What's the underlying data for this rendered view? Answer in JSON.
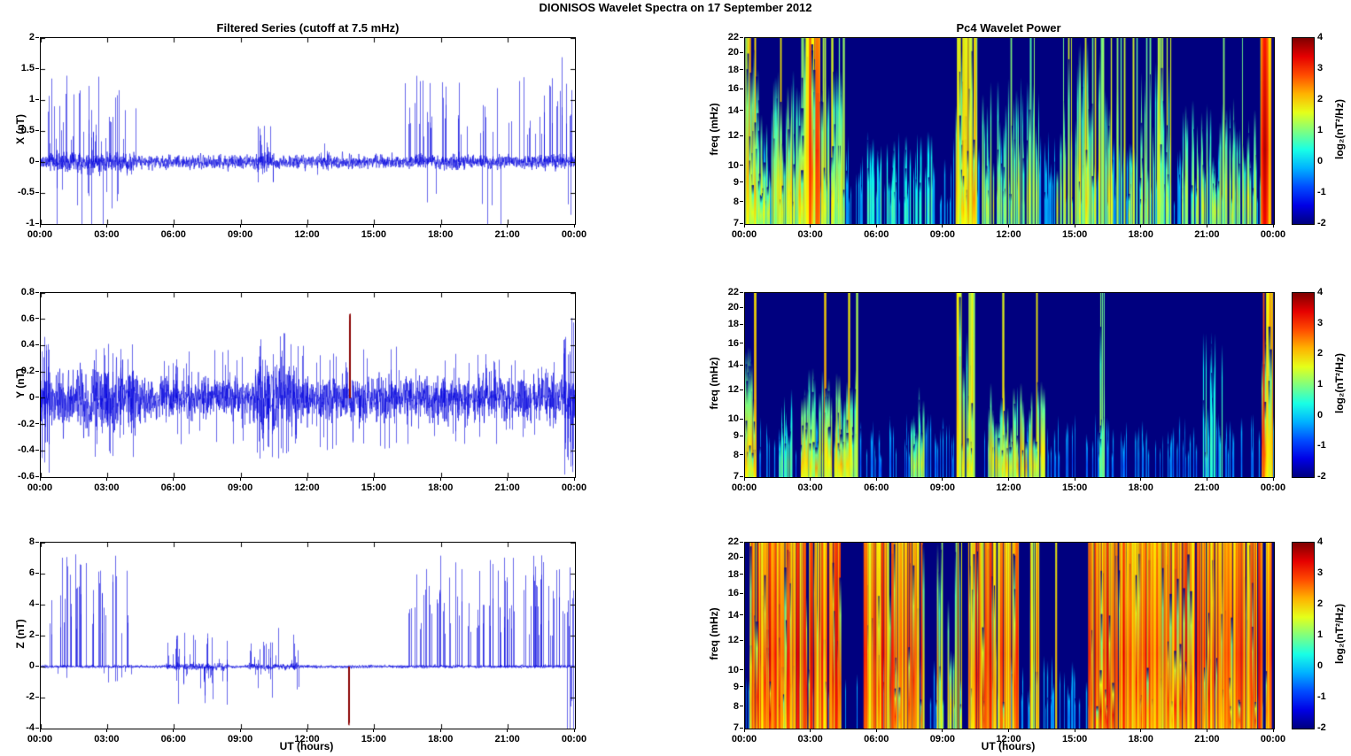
{
  "page_title": "DIONISOS Wavelet Spectra on 17 September 2012",
  "left_column_title": "Filtered Series (cutoff at 7.5 mHz)",
  "right_column_title": "Pc4 Wavelet Power",
  "xlabel": "UT (hours)",
  "x_ticks": [
    "00:00",
    "03:00",
    "06:00",
    "09:00",
    "12:00",
    "15:00",
    "18:00",
    "21:00",
    "00:00"
  ],
  "line_color": "#0000dd",
  "accent_spike_color": "#8b0000",
  "colorbar": {
    "label": "log₂(nT²/Hz)",
    "min": -2,
    "max": 4,
    "ticks": [
      4,
      3,
      2,
      1,
      0,
      -1,
      -2
    ]
  },
  "chart_data": [
    {
      "type": "line",
      "name": "x-series",
      "title": "Filtered Series (cutoff at 7.5 mHz)",
      "ylabel": "X (nT)",
      "ylim": [
        -1,
        2
      ],
      "yticks": [
        2,
        1.5,
        1,
        0.5,
        0,
        -0.5,
        -1
      ],
      "xlim_hours": [
        0,
        24
      ],
      "noise_sigma": 0.055,
      "envelope_regions": [
        {
          "t": [
            0.3,
            4.3
          ],
          "factor": 1.4
        },
        {
          "t": [
            9.7,
            10.5
          ],
          "factor": 1.5
        }
      ],
      "spike_regions": [
        {
          "t": [
            0.3,
            4.3
          ],
          "amp": [
            0.3,
            1.42
          ],
          "dir": "mostly-up",
          "density": 0.5
        },
        {
          "t": [
            2.7,
            4.2
          ],
          "amp": [
            0.2,
            0.75
          ],
          "dir": "down",
          "density": 0.12
        },
        {
          "t": [
            9.7,
            10.5
          ],
          "amp": [
            0.15,
            0.6
          ],
          "dir": "both",
          "density": 0.7
        },
        {
          "t": [
            12.4,
            13.3
          ],
          "amp": [
            0.1,
            0.35
          ],
          "dir": "both",
          "density": 0.35
        },
        {
          "t": [
            16.3,
            23.4
          ],
          "amp": [
            0.4,
            1.4
          ],
          "dir": "mostly-up",
          "density": 0.33
        },
        {
          "t": [
            23.4,
            23.92
          ],
          "amp": [
            0.6,
            1.8
          ],
          "dir": "mostly-up",
          "density": 0.6
        },
        {
          "t": [
            23.5,
            23.9
          ],
          "amp": [
            0.5,
            1.05
          ],
          "dir": "down",
          "density": 0.2
        }
      ]
    },
    {
      "type": "line",
      "name": "y-series",
      "ylabel": "Y (nT)",
      "ylim": [
        -0.6,
        0.8
      ],
      "yticks": [
        0.8,
        0.6,
        0.4,
        0.2,
        0,
        -0.2,
        -0.4,
        -0.6
      ],
      "xlim_hours": [
        0,
        24
      ],
      "noise_sigma": 0.075,
      "envelope_regions": [
        {
          "t": [
            0,
            4.5
          ],
          "factor": 1.5
        },
        {
          "t": [
            9.5,
            11.5
          ],
          "factor": 1.6
        },
        {
          "t": [
            22.8,
            24
          ],
          "factor": 1.4
        }
      ],
      "spike_regions": [
        {
          "t": [
            0.05,
            0.45
          ],
          "amp": [
            0.3,
            0.58
          ],
          "dir": "both",
          "density": 1.5
        },
        {
          "t": [
            2.4,
            4.3
          ],
          "amp": [
            0.15,
            0.45
          ],
          "dir": "both",
          "density": 0.8
        },
        {
          "t": [
            5.5,
            9.2
          ],
          "amp": [
            0.1,
            0.4
          ],
          "dir": "both",
          "density": 0.45
        },
        {
          "t": [
            9.5,
            11.5
          ],
          "amp": [
            0.15,
            0.5
          ],
          "dir": "both",
          "density": 0.9
        },
        {
          "t": [
            11.5,
            16.2
          ],
          "amp": [
            0.1,
            0.42
          ],
          "dir": "both",
          "density": 0.45
        },
        {
          "t": [
            13.88,
            13.93
          ],
          "amp": [
            0.55,
            0.65
          ],
          "dir": "up",
          "density": 25,
          "color": "#8b0000"
        },
        {
          "t": [
            16.2,
            23.4
          ],
          "amp": [
            0.1,
            0.35
          ],
          "dir": "both",
          "density": 0.45
        },
        {
          "t": [
            23.5,
            23.95
          ],
          "amp": [
            0.3,
            0.62
          ],
          "dir": "both",
          "density": 2
        }
      ]
    },
    {
      "type": "line",
      "name": "z-series",
      "ylabel": "Z (nT)",
      "ylim": [
        -4,
        8
      ],
      "yticks": [
        8,
        6,
        4,
        2,
        0,
        -2,
        -4
      ],
      "xlabel": "UT (hours)",
      "xlim_hours": [
        0,
        24
      ],
      "noise_sigma": 0.05,
      "envelope_regions": [
        {
          "t": [
            5.6,
            8.4
          ],
          "factor": 2.2
        },
        {
          "t": [
            9.3,
            11.6
          ],
          "factor": 2.0
        }
      ],
      "spike_regions": [
        {
          "t": [
            0.35,
            4.1
          ],
          "amp": [
            2,
            7.3
          ],
          "dir": "up",
          "density": 0.45
        },
        {
          "t": [
            0.35,
            4.1
          ],
          "amp": [
            0.3,
            1.1
          ],
          "dir": "down",
          "density": 0.1
        },
        {
          "t": [
            5.6,
            8.4
          ],
          "amp": [
            0.4,
            2.5
          ],
          "dir": "both",
          "density": 0.6
        },
        {
          "t": [
            9.3,
            11.6
          ],
          "amp": [
            0.4,
            2.6
          ],
          "dir": "both",
          "density": 0.5
        },
        {
          "t": [
            13.82,
            13.86
          ],
          "amp": [
            3.5,
            3.8
          ],
          "dir": "down",
          "density": 30,
          "color": "#8b0000"
        },
        {
          "t": [
            16.4,
            23.6
          ],
          "amp": [
            2,
            7.3
          ],
          "dir": "up",
          "density": 0.5
        },
        {
          "t": [
            23.6,
            23.95
          ],
          "amp": [
            2,
            6.5
          ],
          "dir": "both",
          "density": 1.2
        }
      ]
    },
    {
      "type": "heatmap",
      "name": "pc4-wavelet-power-x",
      "title": "Pc4 Wavelet Power",
      "ylabel": "freq (mHz)",
      "flim": [
        7,
        22
      ],
      "yscale": "log",
      "yticks": [
        22,
        20,
        18,
        16,
        14,
        12,
        10,
        9,
        8,
        7
      ],
      "clim": [
        -2,
        4
      ],
      "colormap": "jet",
      "streak_clusters": [
        {
          "t": [
            0,
            24
          ],
          "vmax": -0.4,
          "density": 0.5,
          "max_h": 0.5,
          "width": 1
        },
        {
          "t": [
            0.05,
            0.6
          ],
          "vmax": 2.6,
          "density": 2.5,
          "max_h": 0.95,
          "full_prob": 0.25,
          "width": 2.2
        },
        {
          "t": [
            0.6,
            4.5
          ],
          "vmax": 2.1,
          "density": 1.1,
          "max_h": 0.85,
          "full_prob": 0.12,
          "width": 1.8
        },
        {
          "t": [
            2.5,
            3.4
          ],
          "vmax": 3.1,
          "density": 1.8,
          "max_h": 1,
          "full_prob": 0.35,
          "width": 2.6
        },
        {
          "t": [
            5.4,
            8.6
          ],
          "vmax": 0.9,
          "density": 0.45,
          "max_h": 0.5,
          "width": 1.4
        },
        {
          "t": [
            9.6,
            10.5
          ],
          "vmax": 2.7,
          "density": 1.8,
          "max_h": 1,
          "full_prob": 0.45,
          "width": 2
        },
        {
          "t": [
            10.8,
            13.5
          ],
          "vmax": 1.7,
          "density": 0.7,
          "max_h": 0.8,
          "full_prob": 0.08,
          "width": 1.5
        },
        {
          "t": [
            14.1,
            16.7
          ],
          "vmax": 2.1,
          "density": 0.7,
          "max_h": 1,
          "full_prob": 0.25,
          "width": 1.6
        },
        {
          "t": [
            16.9,
            19.3
          ],
          "vmax": 1.9,
          "density": 0.7,
          "max_h": 0.9,
          "full_prob": 0.18,
          "width": 1.5
        },
        {
          "t": [
            19.8,
            23.3
          ],
          "vmax": 1.7,
          "density": 0.7,
          "max_h": 0.7,
          "full_prob": 0.08,
          "width": 1.5
        },
        {
          "t": [
            23.45,
            23.85
          ],
          "vmax": 3.8,
          "density": 3,
          "max_h": 1,
          "full_prob": 0.7,
          "width": 2.6
        }
      ]
    },
    {
      "type": "heatmap",
      "name": "pc4-wavelet-power-y",
      "ylabel": "freq (mHz)",
      "flim": [
        7,
        22
      ],
      "yscale": "log",
      "yticks": [
        22,
        20,
        18,
        16,
        14,
        12,
        10,
        9,
        8,
        7
      ],
      "clim": [
        -2,
        4
      ],
      "colormap": "jet",
      "streak_clusters": [
        {
          "t": [
            0,
            24
          ],
          "vmax": -0.8,
          "density": 0.35,
          "max_h": 0.35,
          "width": 1
        },
        {
          "t": [
            0.05,
            0.5
          ],
          "vmax": 2.6,
          "density": 2.5,
          "max_h": 0.75,
          "full_prob": 0.1,
          "width": 2.4
        },
        {
          "t": [
            1.4,
            2.2
          ],
          "vmax": 1.1,
          "density": 0.7,
          "max_h": 0.5,
          "width": 1.4
        },
        {
          "t": [
            2.5,
            5.1
          ],
          "vmax": 2.3,
          "density": 1.1,
          "max_h": 0.6,
          "full_prob": 0.04,
          "width": 2
        },
        {
          "t": [
            7.4,
            8.1
          ],
          "vmax": 1.6,
          "density": 1,
          "max_h": 0.5,
          "width": 1.6
        },
        {
          "t": [
            9.6,
            10.4
          ],
          "vmax": 2.2,
          "density": 1.4,
          "max_h": 1,
          "full_prob": 0.35,
          "width": 1.8
        },
        {
          "t": [
            10.9,
            13.6
          ],
          "vmax": 2.3,
          "density": 0.9,
          "max_h": 0.55,
          "full_prob": 0.03,
          "width": 1.8
        },
        {
          "t": [
            16.1,
            16.35
          ],
          "vmax": 1.4,
          "density": 1.6,
          "max_h": 1,
          "full_prob": 0.5,
          "width": 1.5
        },
        {
          "t": [
            20.7,
            21.7
          ],
          "vmax": 0.9,
          "density": 0.6,
          "max_h": 0.8,
          "width": 1.3
        },
        {
          "t": [
            23.5,
            23.92
          ],
          "vmax": 3.2,
          "density": 3,
          "max_h": 0.85,
          "full_prob": 0.25,
          "width": 2.6
        }
      ]
    },
    {
      "type": "heatmap",
      "name": "pc4-wavelet-power-z",
      "ylabel": "freq (mHz)",
      "xlabel": "UT (hours)",
      "flim": [
        7,
        22
      ],
      "yscale": "log",
      "yticks": [
        22,
        20,
        18,
        16,
        14,
        12,
        10,
        9,
        8,
        7
      ],
      "clim": [
        -2,
        4
      ],
      "colormap": "jet",
      "streak_clusters": [
        {
          "t": [
            0,
            24
          ],
          "vmax": -0.6,
          "density": 0.3,
          "max_h": 0.4,
          "width": 1
        },
        {
          "t": [
            0.2,
            4.4
          ],
          "vmax": 3.6,
          "density": 1.6,
          "max_h": 1,
          "full_prob": 0.7,
          "width": 1.8
        },
        {
          "t": [
            5.4,
            8.1
          ],
          "vmax": 3.4,
          "density": 1.5,
          "max_h": 1,
          "full_prob": 0.65,
          "width": 1.8
        },
        {
          "t": [
            8.5,
            9.9
          ],
          "vmax": 2.4,
          "density": 0.5,
          "max_h": 1,
          "full_prob": 0.45,
          "width": 1.4
        },
        {
          "t": [
            10.1,
            12.4
          ],
          "vmax": 3.5,
          "density": 1.5,
          "max_h": 1,
          "full_prob": 0.65,
          "width": 1.8
        },
        {
          "t": [
            12.9,
            13.4
          ],
          "vmax": 3.0,
          "density": 1.2,
          "max_h": 1,
          "full_prob": 0.7,
          "width": 1.5
        },
        {
          "t": [
            14.1,
            14.2
          ],
          "vmax": 2.2,
          "density": 1,
          "max_h": 1,
          "full_prob": 1,
          "width": 1.2
        },
        {
          "t": [
            15.6,
            23.9
          ],
          "vmax": 3.6,
          "density": 1.6,
          "max_h": 1,
          "full_prob": 0.7,
          "width": 1.8
        }
      ]
    }
  ]
}
